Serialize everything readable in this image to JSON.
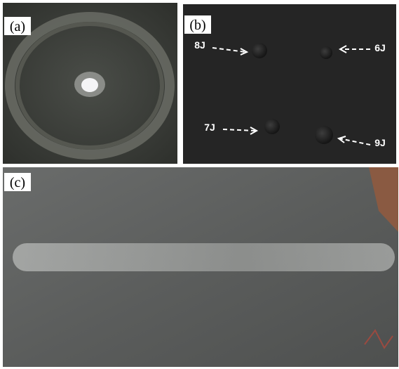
{
  "panels": [
    {
      "label": "(a)"
    },
    {
      "label": "(b)",
      "annotations": [
        "8J",
        "6J",
        "7J",
        "9J"
      ]
    },
    {
      "label": "(c)"
    }
  ]
}
